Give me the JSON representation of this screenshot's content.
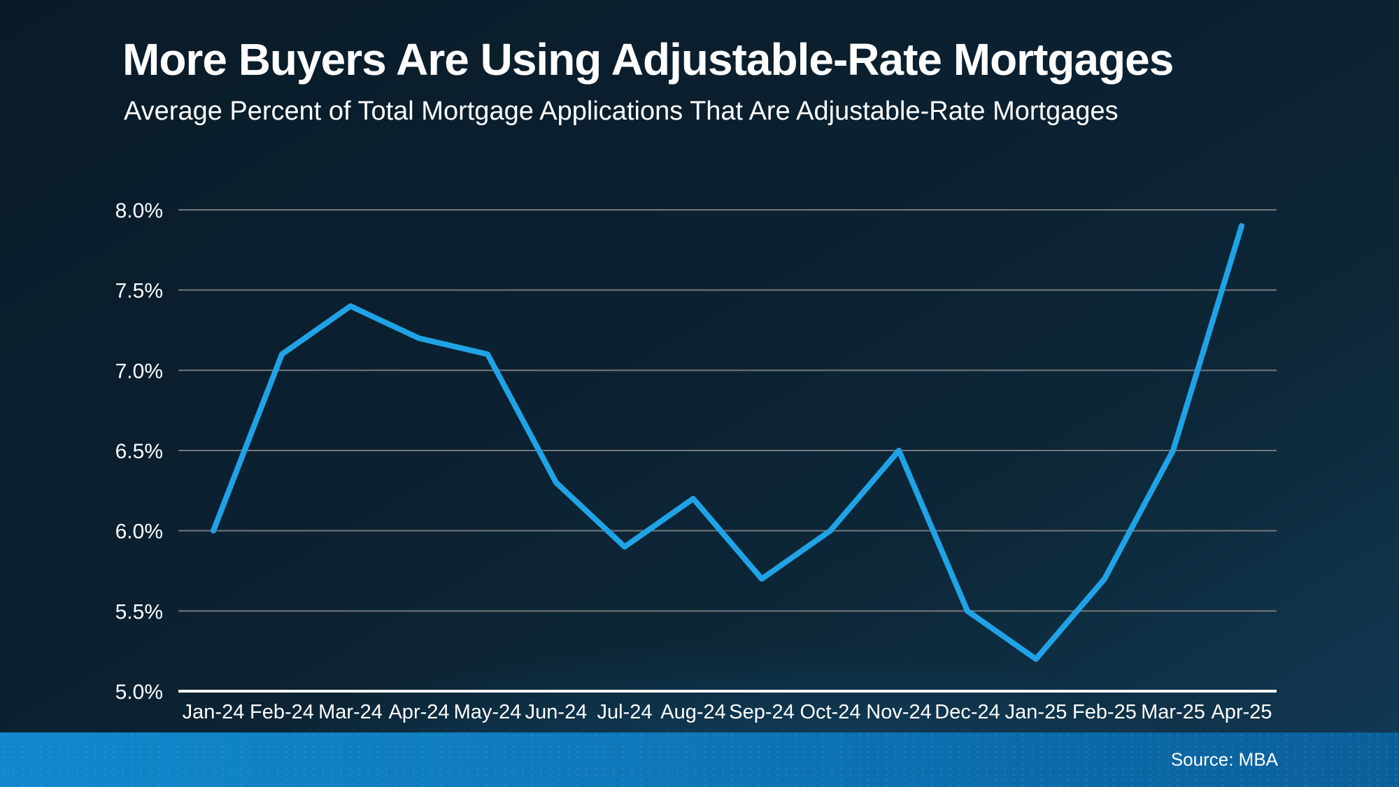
{
  "header": {
    "title": "More Buyers Are Using Adjustable-Rate Mortgages",
    "subtitle": "Average Percent of Total Mortgage Applications That Are Adjustable-Rate Mortgages"
  },
  "footer": {
    "source": "Source: MBA"
  },
  "colors": {
    "line": "#1fa3e6",
    "gridline": "#75787a",
    "axis_line": "#ffffff",
    "text": "#ffffff",
    "background_top": "#0a1b28",
    "background_bottom": "#123a55",
    "footer_bar_left": "#1287cd",
    "footer_bar_right": "#0b5f98"
  },
  "chart_data": {
    "type": "line",
    "title": "More Buyers Are Using Adjustable-Rate Mortgages",
    "subtitle": "Average Percent of Total Mortgage Applications That Are Adjustable-Rate Mortgages",
    "x": [
      "Jan-24",
      "Feb-24",
      "Mar-24",
      "Apr-24",
      "May-24",
      "Jun-24",
      "Jul-24",
      "Aug-24",
      "Sep-24",
      "Oct-24",
      "Nov-24",
      "Dec-24",
      "Jan-25",
      "Feb-25",
      "Mar-25",
      "Apr-25"
    ],
    "series": [
      {
        "name": "Percent of mortgage applications that are ARMs",
        "values": [
          6.0,
          7.1,
          7.4,
          7.2,
          7.1,
          6.3,
          5.9,
          6.2,
          5.7,
          6.0,
          6.5,
          5.5,
          5.2,
          5.7,
          6.5,
          7.9
        ]
      }
    ],
    "ylim": [
      5.0,
      8.0
    ],
    "yticks": [
      5.0,
      5.5,
      6.0,
      6.5,
      7.0,
      7.5,
      8.0
    ],
    "ytick_labels": [
      "5.0%",
      "5.5%",
      "6.0%",
      "6.5%",
      "7.0%",
      "7.5%",
      "8.0%"
    ],
    "xlabel": "",
    "ylabel": "",
    "grid": "horizontal",
    "legend": "none",
    "source": "Source: MBA"
  }
}
